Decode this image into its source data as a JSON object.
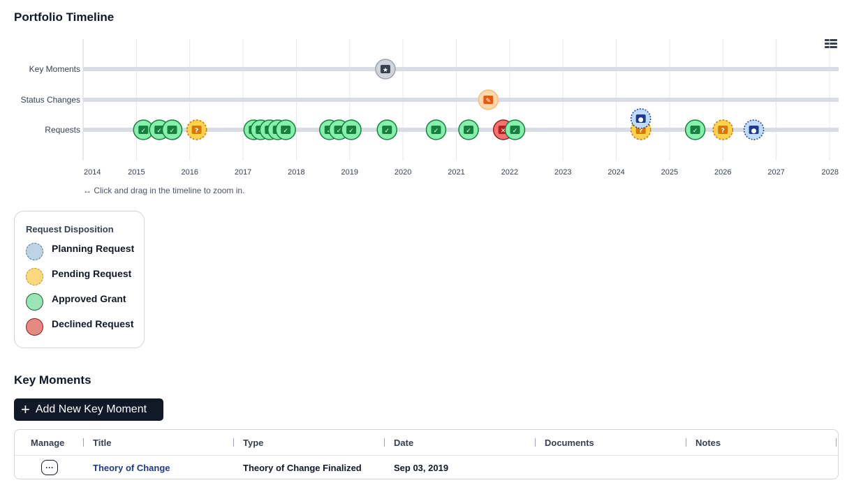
{
  "timeline": {
    "title": "Portfolio Timeline",
    "zoom_hint": "↔ Click and drag in the timeline to zoom in.",
    "menu_icon": "hamburger-menu-icon",
    "lanes": [
      "Key Moments",
      "Status Changes",
      "Requests"
    ],
    "x_axis": {
      "ticks": [
        "2014",
        "2015",
        "2016",
        "2017",
        "2018",
        "2019",
        "2020",
        "2021",
        "2022",
        "2023",
        "2024",
        "2025",
        "2026",
        "2027",
        "2028"
      ],
      "range": [
        2014.0,
        2028.0
      ]
    },
    "colors": {
      "approved": "#86efac",
      "approved_border": "#15803d",
      "pending": "#fcd34d",
      "pending_border": "#d97706",
      "planning": "#bfdbfe",
      "planning_border": "#1e3a8a",
      "declined": "#f87171",
      "declined_border": "#991b1b",
      "key_moment": "#9ca3af",
      "status_change": "#fdba74"
    },
    "events": [
      {
        "lane": "Key Moments",
        "date": 2019.67,
        "kind": "key_moment",
        "icon": "calendar-star-icon"
      },
      {
        "lane": "Status Changes",
        "date": 2021.6,
        "kind": "status_change",
        "icon": "folder-edit-icon"
      },
      {
        "lane": "Requests",
        "date": 2015.13,
        "kind": "approved",
        "icon": "folder-check-icon"
      },
      {
        "lane": "Requests",
        "date": 2015.43,
        "kind": "approved",
        "icon": "folder-check-icon"
      },
      {
        "lane": "Requests",
        "date": 2015.67,
        "kind": "approved",
        "icon": "folder-check-icon"
      },
      {
        "lane": "Requests",
        "date": 2016.13,
        "kind": "pending",
        "icon": "folder-question-icon"
      },
      {
        "lane": "Requests",
        "date": 2017.2,
        "kind": "approved",
        "icon": "folder-check-icon"
      },
      {
        "lane": "Requests",
        "date": 2017.33,
        "kind": "approved",
        "icon": "folder-check-icon"
      },
      {
        "lane": "Requests",
        "date": 2017.5,
        "kind": "approved",
        "icon": "folder-check-icon"
      },
      {
        "lane": "Requests",
        "date": 2017.65,
        "kind": "approved",
        "icon": "folder-check-icon"
      },
      {
        "lane": "Requests",
        "date": 2017.8,
        "kind": "approved",
        "icon": "folder-check-icon"
      },
      {
        "lane": "Requests",
        "date": 2018.62,
        "kind": "approved",
        "icon": "folder-check-icon"
      },
      {
        "lane": "Requests",
        "date": 2018.8,
        "kind": "approved",
        "icon": "folder-check-icon"
      },
      {
        "lane": "Requests",
        "date": 2019.03,
        "kind": "approved",
        "icon": "folder-check-icon"
      },
      {
        "lane": "Requests",
        "date": 2019.7,
        "kind": "approved",
        "icon": "folder-check-icon"
      },
      {
        "lane": "Requests",
        "date": 2020.62,
        "kind": "approved",
        "icon": "folder-check-icon"
      },
      {
        "lane": "Requests",
        "date": 2021.23,
        "kind": "approved",
        "icon": "folder-check-icon"
      },
      {
        "lane": "Requests",
        "date": 2021.88,
        "kind": "declined",
        "icon": "folder-x-icon"
      },
      {
        "lane": "Requests",
        "date": 2022.1,
        "kind": "approved",
        "icon": "folder-check-icon"
      },
      {
        "lane": "Requests",
        "date": 2024.46,
        "kind": "pending",
        "icon": "folder-question-icon"
      },
      {
        "lane": "Requests",
        "date": 2024.46,
        "kind": "planning",
        "icon": "folder-lock-icon"
      },
      {
        "lane": "Requests",
        "date": 2025.48,
        "kind": "approved",
        "icon": "folder-check-icon"
      },
      {
        "lane": "Requests",
        "date": 2026.0,
        "kind": "pending",
        "icon": "folder-question-icon"
      },
      {
        "lane": "Requests",
        "date": 2026.58,
        "kind": "planning",
        "icon": "folder-lock-icon"
      }
    ]
  },
  "legend": {
    "title": "Request Disposition",
    "items": [
      {
        "label": "Planning Request",
        "fill": "#bfd3e8",
        "border": "#4b6a8f",
        "dashed": true
      },
      {
        "label": "Pending Request",
        "fill": "#fcd77d",
        "border": "#c28a0a",
        "dashed": true
      },
      {
        "label": "Approved Grant",
        "fill": "#9ce3b5",
        "border": "#166534",
        "dashed": false
      },
      {
        "label": "Declined Request",
        "fill": "#e58a82",
        "border": "#8f1d1d",
        "dashed": false
      }
    ]
  },
  "key_moments": {
    "title": "Key Moments",
    "add_button_label": "Add New Key Moment",
    "add_button_icon": "plus-icon",
    "columns": [
      "Manage",
      "Title",
      "Type",
      "Date",
      "Documents",
      "Notes"
    ],
    "rows": [
      {
        "manage_icon": "ellipsis-icon",
        "title": "Theory of Change",
        "type": "Theory of Change Finalized",
        "date": "Sep 03, 2019",
        "documents": "",
        "notes": ""
      }
    ]
  }
}
